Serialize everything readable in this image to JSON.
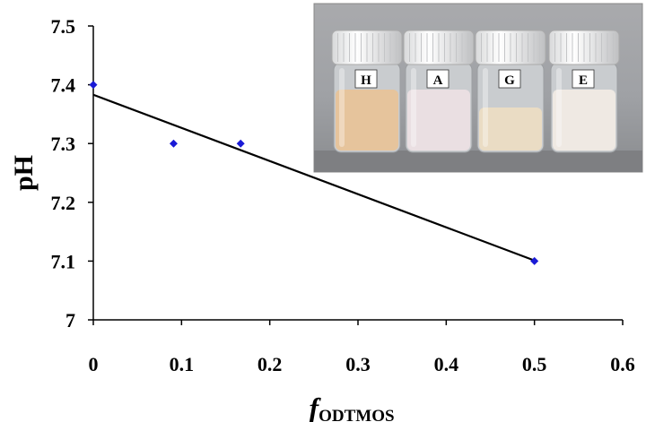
{
  "chart_data": {
    "type": "scatter",
    "xlabel": {
      "main": "f",
      "subscript": "ODTMOS"
    },
    "ylabel": "pH",
    "xlim": [
      0,
      0.6
    ],
    "ylim": [
      7,
      7.5
    ],
    "x_ticks": [
      "0",
      "0.1",
      "0.2",
      "0.3",
      "0.4",
      "0.5",
      "0.6"
    ],
    "y_ticks": [
      "7",
      "7.1",
      "7.2",
      "7.3",
      "7.4",
      "7.5"
    ],
    "grid": false,
    "series": [
      {
        "points": [
          {
            "x": 0,
            "y": 7.4
          },
          {
            "x": 0.091,
            "y": 7.3
          },
          {
            "x": 0.167,
            "y": 7.3
          },
          {
            "x": 0.5,
            "y": 7.1
          }
        ],
        "marker": "diamond",
        "color": "#1a1ad6"
      }
    ],
    "trendline": {
      "type": "linear",
      "x_start": 0,
      "y_start": 7.383,
      "x_end": 0.5,
      "y_end": 7.101,
      "color": "#000000"
    }
  },
  "inset_photo": {
    "vials": [
      {
        "label": "H",
        "liquid": "#e6c49c"
      },
      {
        "label": "A",
        "liquid": "#eadfe2"
      },
      {
        "label": "G",
        "liquid": "#eadcc4"
      },
      {
        "label": "E",
        "liquid": "#efe9e3"
      }
    ]
  }
}
